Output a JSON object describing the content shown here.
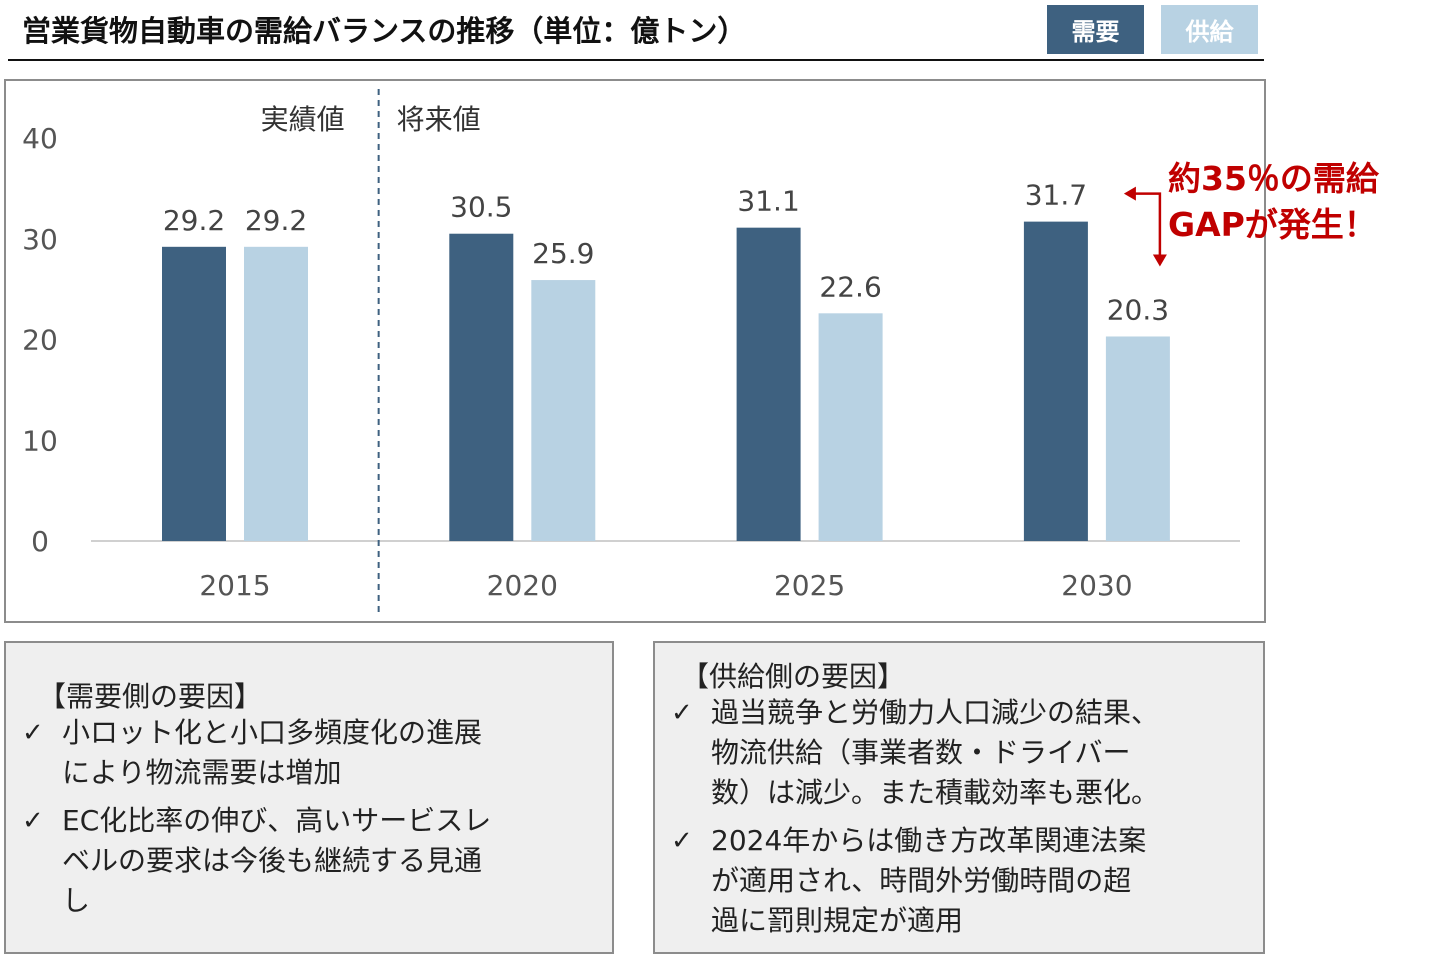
{
  "title": "営業貨物自動車の需給バランスの推移（単位：億トン）",
  "legend": {
    "demand": "需要",
    "supply": "供給"
  },
  "colors": {
    "demand": "#3e6180",
    "supply": "#b8d2e3",
    "callout": "#c00000",
    "axis_text": "#555555"
  },
  "chart_data": {
    "type": "bar",
    "categories": [
      "2015",
      "2020",
      "2025",
      "2030"
    ],
    "series": [
      {
        "name": "需要",
        "values": [
          29.2,
          30.5,
          31.1,
          31.7
        ]
      },
      {
        "name": "供給",
        "values": [
          29.2,
          25.9,
          22.6,
          20.3
        ]
      }
    ],
    "ylim": [
      0,
      40
    ],
    "yticks": [
      "0",
      "10",
      "20",
      "30",
      "40"
    ],
    "period_labels": {
      "actual": "実績値",
      "forecast": "将来値"
    },
    "annotation": {
      "line1": "約35％の需給",
      "line2": "GAPが発生！"
    },
    "legend_position": "top-right",
    "grid": false
  },
  "demand_factors": {
    "heading": "【需要側の要因】",
    "items": [
      {
        "check": "✓",
        "lines": [
          "小ロット化と小口多頻度化の進展",
          "により物流需要は増加"
        ]
      },
      {
        "check": "✓",
        "lines": [
          "EC化比率の伸び、高いサービスレ",
          "ベルの要求は今後も継続する見通",
          "し"
        ]
      }
    ]
  },
  "supply_factors": {
    "heading": "【供給側の要因】",
    "items": [
      {
        "check": "✓",
        "lines": [
          "過当競争と労働力人口減少の結果、",
          "物流供給（事業者数・ドライバー",
          "数）は減少。また積載効率も悪化。"
        ]
      },
      {
        "check": "✓",
        "lines": [
          "2024年からは働き方改革関連法案",
          "が適用され、時間外労働時間の超",
          "過に罰則規定が適用"
        ]
      }
    ]
  }
}
